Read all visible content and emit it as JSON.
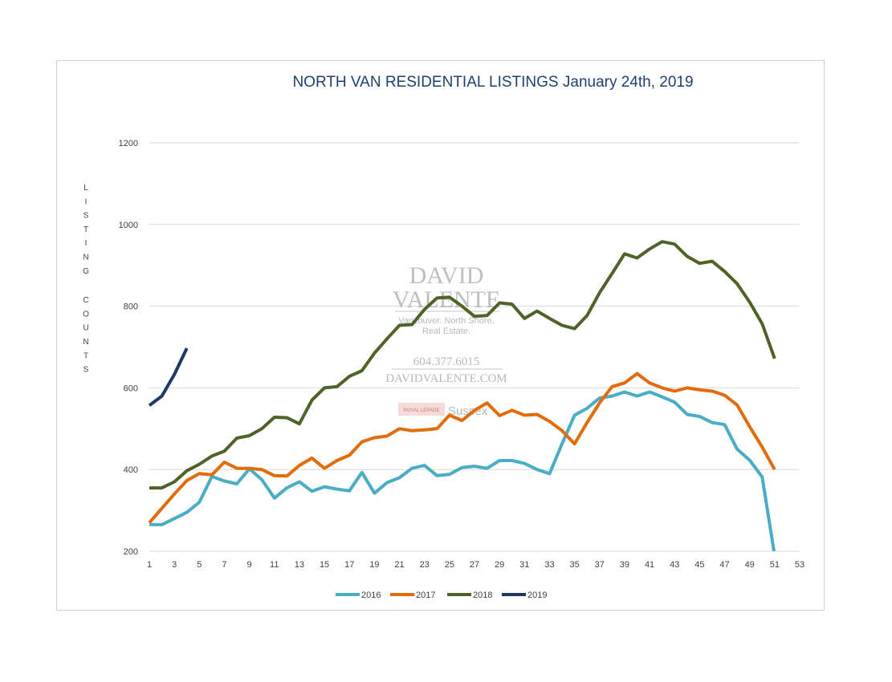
{
  "chart_data": {
    "type": "line",
    "title": "NORTH VAN RESIDENTIAL LISTINGS January 24th, 2019",
    "ylabel": "LISTING COUNTS",
    "xlabel": "",
    "ylim": [
      200,
      1200
    ],
    "yticks": [
      200,
      400,
      600,
      800,
      1000,
      1200
    ],
    "xlim": [
      1,
      53
    ],
    "xticks": [
      1,
      3,
      5,
      7,
      9,
      11,
      13,
      15,
      17,
      19,
      21,
      23,
      25,
      27,
      29,
      31,
      33,
      35,
      37,
      39,
      41,
      43,
      45,
      47,
      49,
      51,
      53
    ],
    "grid": "horizontal",
    "legend_position": "bottom",
    "series": [
      {
        "name": "2016",
        "color": "#4aacc5",
        "x": [
          1,
          2,
          3,
          4,
          5,
          6,
          7,
          8,
          9,
          10,
          11,
          12,
          13,
          14,
          15,
          16,
          17,
          18,
          19,
          20,
          21,
          22,
          23,
          24,
          25,
          26,
          27,
          28,
          29,
          30,
          31,
          32,
          33,
          34,
          35,
          36,
          37,
          38,
          39,
          40,
          41,
          42,
          43,
          44,
          45,
          46,
          47,
          48,
          49,
          50,
          51
        ],
        "values": [
          265,
          265,
          280,
          295,
          320,
          383,
          372,
          365,
          402,
          375,
          330,
          355,
          370,
          347,
          358,
          352,
          348,
          393,
          342,
          368,
          380,
          403,
          410,
          385,
          388,
          405,
          408,
          403,
          422,
          422,
          415,
          400,
          390,
          463,
          533,
          550,
          575,
          580,
          590,
          580,
          590,
          578,
          565,
          535,
          530,
          515,
          510,
          450,
          423,
          382,
          190
        ]
      },
      {
        "name": "2017",
        "color": "#e36c0a",
        "x": [
          1,
          2,
          3,
          4,
          5,
          6,
          7,
          8,
          9,
          10,
          11,
          12,
          13,
          14,
          15,
          16,
          17,
          18,
          19,
          20,
          21,
          22,
          23,
          24,
          25,
          26,
          27,
          28,
          29,
          30,
          31,
          32,
          33,
          34,
          35,
          36,
          37,
          38,
          39,
          40,
          41,
          42,
          43,
          44,
          45,
          46,
          47,
          48,
          49,
          50,
          51
        ],
        "values": [
          270,
          305,
          340,
          373,
          390,
          387,
          418,
          403,
          403,
          400,
          385,
          384,
          410,
          428,
          403,
          422,
          435,
          468,
          478,
          482,
          500,
          495,
          497,
          500,
          533,
          520,
          545,
          563,
          532,
          545,
          533,
          535,
          518,
          495,
          463,
          515,
          563,
          603,
          612,
          635,
          612,
          600,
          592,
          600,
          595,
          592,
          582,
          558,
          505,
          455,
          400
        ]
      },
      {
        "name": "2018",
        "color": "#4f6228",
        "x": [
          1,
          2,
          3,
          4,
          5,
          6,
          7,
          8,
          9,
          10,
          11,
          12,
          13,
          14,
          15,
          16,
          17,
          18,
          19,
          20,
          21,
          22,
          23,
          24,
          25,
          26,
          27,
          28,
          29,
          30,
          31,
          32,
          33,
          34,
          35,
          36,
          37,
          38,
          39,
          40,
          41,
          42,
          43,
          44,
          45,
          46,
          47,
          48,
          49,
          50,
          51
        ],
        "values": [
          355,
          355,
          370,
          397,
          413,
          433,
          445,
          477,
          483,
          500,
          528,
          527,
          512,
          570,
          600,
          603,
          628,
          642,
          685,
          720,
          753,
          755,
          792,
          820,
          822,
          800,
          775,
          777,
          808,
          805,
          770,
          788,
          770,
          753,
          745,
          777,
          833,
          880,
          928,
          918,
          940,
          958,
          952,
          922,
          905,
          910,
          885,
          855,
          810,
          757,
          672
        ]
      },
      {
        "name": "2019",
        "color": "#1f3864",
        "x": [
          1,
          2,
          3,
          4
        ],
        "values": [
          557,
          580,
          633,
          697
        ]
      }
    ]
  },
  "watermark": {
    "line1": "DAVID",
    "line2": "VALENTE",
    "tagline1": "Vancouver. North Shore.",
    "tagline2": "Real Estate.",
    "phone": "604.377.6015",
    "website": "DAVIDVALENTE.COM",
    "brand_small": "ROYAL LEPAGE",
    "brand": "Sussex"
  }
}
